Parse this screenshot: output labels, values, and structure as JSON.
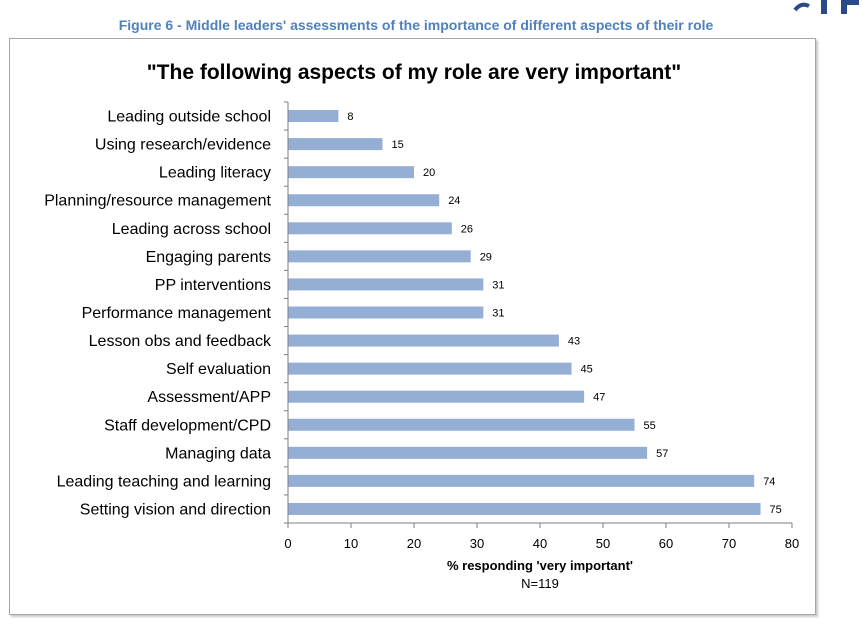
{
  "figure_caption": "Figure 6 - Middle leaders' assessments of the importance of different aspects of their role",
  "colors": {
    "bar": "#95aed4",
    "caption": "#4f81bd",
    "axis": "#7f7f7f",
    "logo": "#2a4a8a"
  },
  "chart_data": {
    "type": "bar",
    "orientation": "horizontal",
    "title": "\"The following aspects of my role are very important\"",
    "xlabel": "% responding 'very important'",
    "note": "N=119",
    "categories": [
      "Leading outside school",
      "Using research/evidence",
      "Leading literacy",
      "Planning/resource management",
      "Leading across school",
      "Engaging parents",
      "PP interventions",
      "Performance management",
      "Lesson obs and feedback",
      "Self evaluation",
      "Assessment/APP",
      "Staff development/CPD",
      "Managing data",
      "Leading teaching and learning",
      "Setting vision and direction"
    ],
    "values": [
      8,
      15,
      20,
      24,
      26,
      29,
      31,
      31,
      43,
      45,
      47,
      55,
      57,
      74,
      75
    ],
    "xlim": [
      0,
      80
    ],
    "xticks": [
      0,
      10,
      20,
      30,
      40,
      50,
      60,
      70,
      80
    ],
    "grid": false,
    "legend": "none"
  }
}
